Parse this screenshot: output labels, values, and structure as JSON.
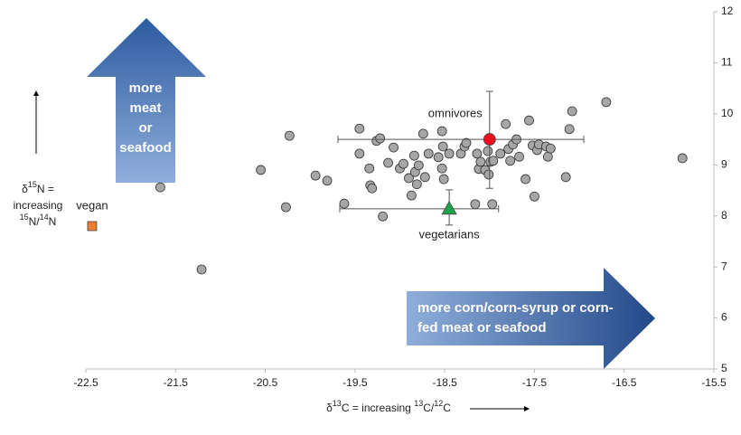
{
  "chart_data": {
    "type": "scatter",
    "xlim": [
      -22.5,
      -15.5
    ],
    "xticks": [
      -22.5,
      -21.5,
      -20.5,
      -19.5,
      -18.5,
      -17.5,
      -16.5,
      -15.5
    ],
    "ylim": [
      5,
      12
    ],
    "yticks": [
      5,
      6,
      7,
      8,
      9,
      10,
      11,
      12
    ],
    "xlabel": [
      {
        "text": "δ"
      },
      {
        "text": "13",
        "sup": true
      },
      {
        "text": "C  =  increasing "
      },
      {
        "text": "13",
        "sup": true
      },
      {
        "text": "C/"
      },
      {
        "text": "12",
        "sup": true
      },
      {
        "text": "C"
      }
    ],
    "ylabel": [
      [
        {
          "text": "δ"
        },
        {
          "text": "15",
          "sup": true
        },
        {
          "text": "N ="
        }
      ],
      [
        {
          "text": "increasing"
        }
      ],
      [
        {
          "text": "15",
          "sup": true
        },
        {
          "text": "N/"
        },
        {
          "text": "14",
          "sup": true
        },
        {
          "text": "N"
        }
      ]
    ],
    "points": {
      "color": "#a6a6a6",
      "x": [
        -21.67,
        -21.21,
        -20.55,
        -20.27,
        -20.23,
        -19.94,
        -19.81,
        -19.62,
        -19.45,
        -19.45,
        -19.34,
        -19.33,
        -19.31,
        -19.26,
        -19.19,
        -19.22,
        -19.07,
        -19.13,
        -19.0,
        -18.96,
        -18.9,
        -18.87,
        -18.84,
        -18.83,
        -18.81,
        -18.79,
        -18.74,
        -18.72,
        -18.68,
        -18.57,
        -18.53,
        -18.52,
        -18.53,
        -18.51,
        -18.45,
        -18.32,
        -18.28,
        -18.26,
        -18.16,
        -18.14,
        -18.12,
        -18.1,
        -18.05,
        -18.02,
        -18.01,
        -17.99,
        -17.97,
        -17.96,
        -17.88,
        -17.82,
        -17.79,
        -17.77,
        -17.74,
        -17.7,
        -17.67,
        -17.6,
        -17.56,
        -17.52,
        -17.5,
        -17.47,
        -17.45,
        -17.37,
        -17.35,
        -17.32,
        -17.15,
        -17.11,
        -17.08,
        -16.7,
        -15.85
      ],
      "y": [
        8.56,
        6.95,
        8.9,
        8.17,
        9.57,
        8.79,
        8.69,
        8.24,
        9.71,
        9.22,
        8.93,
        8.6,
        8.54,
        9.47,
        7.99,
        9.52,
        9.34,
        9.04,
        8.93,
        9.02,
        8.74,
        8.4,
        9.18,
        8.86,
        8.62,
        8.99,
        9.61,
        8.76,
        9.22,
        9.15,
        9.66,
        9.36,
        8.93,
        8.72,
        9.22,
        9.22,
        9.36,
        9.43,
        8.23,
        9.22,
        8.92,
        9.06,
        8.9,
        9.27,
        8.81,
        9.06,
        8.23,
        9.08,
        9.22,
        9.8,
        9.31,
        9.08,
        9.4,
        9.5,
        9.16,
        8.72,
        9.87,
        9.38,
        8.38,
        9.29,
        9.4,
        9.36,
        9.16,
        9.32,
        8.76,
        9.7,
        10.05,
        10.23,
        9.13
      ]
    },
    "groups": [
      {
        "name": "vegan",
        "color": "#ed7d31",
        "marker": "square",
        "x": -22.43,
        "y": 7.8
      },
      {
        "name": "omnivores",
        "color": "#e8101e",
        "marker": "circle",
        "x": -18.0,
        "y": 9.5,
        "xrange": [
          -19.69,
          -16.95
        ],
        "yrange": [
          8.54,
          10.44
        ]
      },
      {
        "name": "vegetarians",
        "color": "#1fa34a",
        "marker": "triangle",
        "x": -18.45,
        "y": 8.14,
        "xrange": [
          -19.67,
          -17.9
        ],
        "yrange": [
          7.82,
          8.51
        ]
      }
    ],
    "annotations": {
      "up_arrow": [
        "more",
        "meat",
        "or",
        "seafood"
      ],
      "right_arrow": [
        "more corn/corn-syrup or corn-",
        "fed meat or seafood"
      ]
    }
  }
}
